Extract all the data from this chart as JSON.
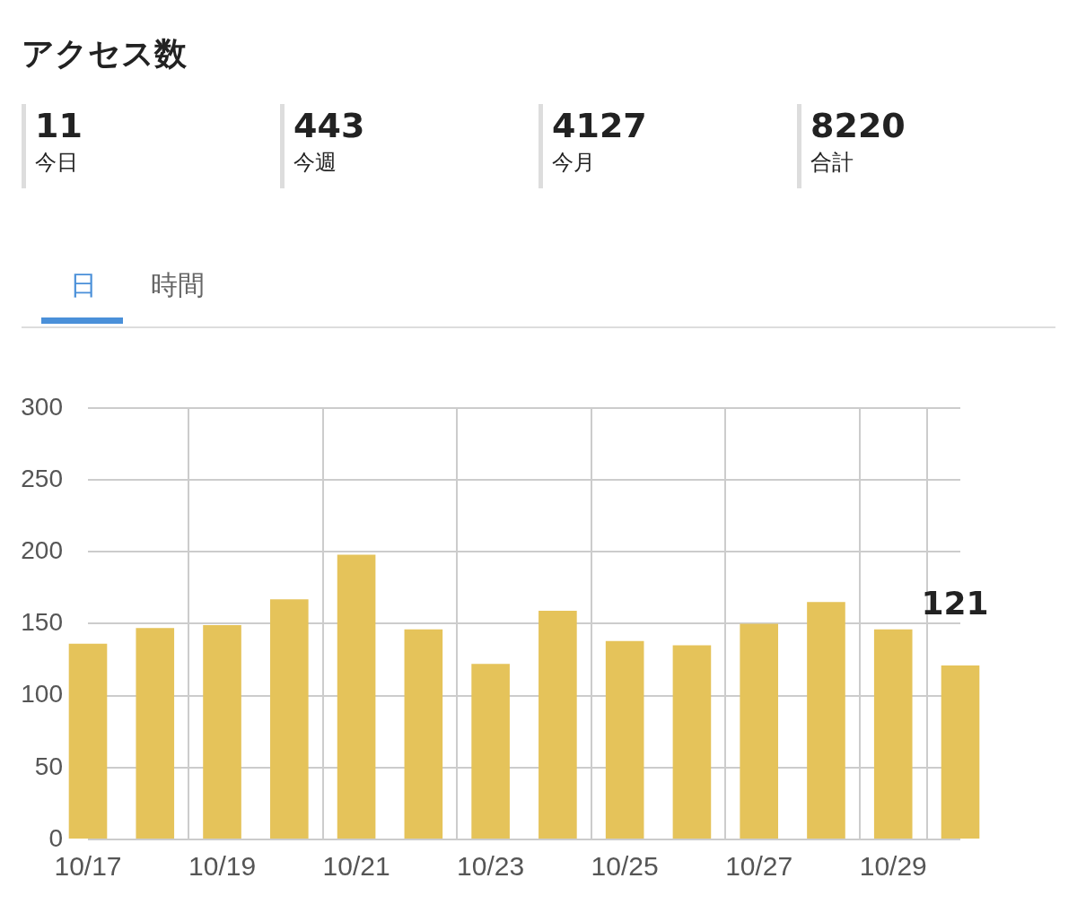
{
  "chart_data": {
    "type": "bar",
    "title": "アクセス数",
    "categories": [
      "10/17",
      null,
      "10/19",
      null,
      "10/21",
      null,
      "10/23",
      null,
      "10/25",
      null,
      "10/27",
      null,
      "10/29",
      null
    ],
    "values": [
      136,
      147,
      149,
      167,
      198,
      146,
      122,
      159,
      138,
      135,
      150,
      165,
      146,
      121
    ],
    "value_labels": [
      null,
      null,
      null,
      null,
      null,
      null,
      null,
      null,
      null,
      null,
      null,
      null,
      null,
      "121"
    ],
    "color": "#e5c35a",
    "ylim": [
      0,
      300
    ],
    "yticks": [
      0,
      50,
      100,
      150,
      200,
      250,
      300
    ],
    "grid": true,
    "legend": false,
    "annotations": [
      "11",
      "今日",
      "443",
      "今週",
      "4127",
      "今月",
      "8220",
      "合計",
      "日",
      "時間"
    ]
  }
}
